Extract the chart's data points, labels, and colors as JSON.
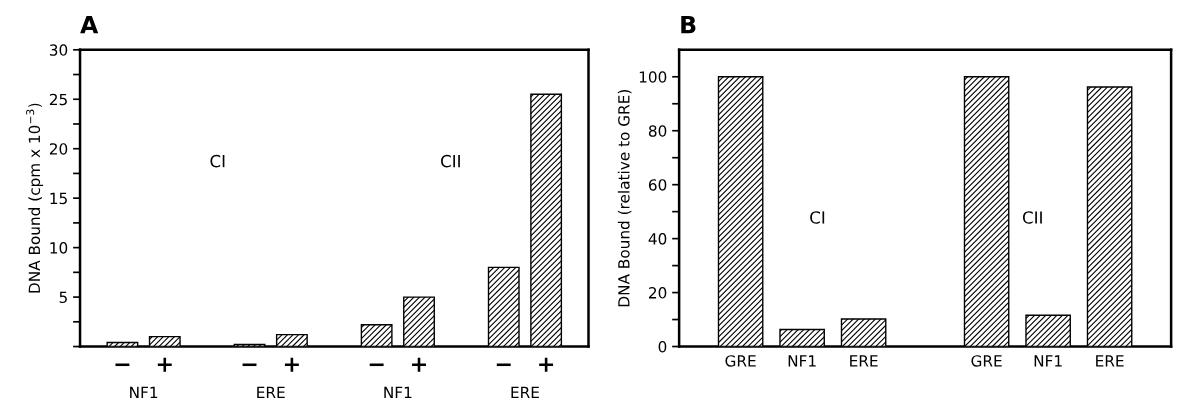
{
  "chart_data": [
    {
      "type": "bar",
      "title": "A",
      "ylabel": "DNA Bound (cpm x 10$^{−3}$)",
      "categories": [
        "−",
        "+",
        null,
        "−",
        "+",
        null,
        "−",
        "+",
        null,
        "−",
        "+"
      ],
      "series": [
        {
          "color": "#000000",
          "values": [
            0.4,
            1.0,
            null,
            0.2,
            1.2,
            null,
            2.2,
            5.0,
            null,
            8.0,
            25.5
          ]
        }
      ],
      "ylim": [
        0,
        30
      ],
      "yticks": [
        {
          "value": 0,
          "label": null
        },
        {
          "value": 2.5,
          "label": null
        },
        5,
        {
          "value": 7.5,
          "label": null
        },
        10,
        {
          "value": 12.5,
          "label": null
        },
        15,
        {
          "value": 17.5,
          "label": null
        },
        20,
        {
          "value": 22.5,
          "label": null
        },
        25,
        {
          "value": 27.5,
          "label": null
        },
        30
      ],
      "annotations": [
        "CI",
        "CII",
        "NF1",
        "ERE",
        "NF1",
        "ERE"
      ],
      "grid": false,
      "legend": false
    },
    {
      "type": "bar",
      "title": "B",
      "ylabel": "DNA Bound (relative to GRE)",
      "categories": [
        "GRE",
        "NF1",
        "ERE",
        null,
        "GRE",
        "NF1",
        "ERE"
      ],
      "series": [
        {
          "color": "#000000",
          "values": [
            100,
            6.3,
            10.2,
            null,
            100,
            11.6,
            96.2
          ]
        }
      ],
      "ylim": [
        0,
        110
      ],
      "yticks": [
        0,
        {
          "value": 10,
          "label": null
        },
        20,
        {
          "value": 30,
          "label": null
        },
        40,
        {
          "value": 50,
          "label": null
        },
        60,
        {
          "value": 70,
          "label": null
        },
        80,
        {
          "value": 90,
          "label": null
        },
        100
      ],
      "annotations": [
        "CI",
        "CII"
      ],
      "grid": false,
      "legend": false
    }
  ]
}
